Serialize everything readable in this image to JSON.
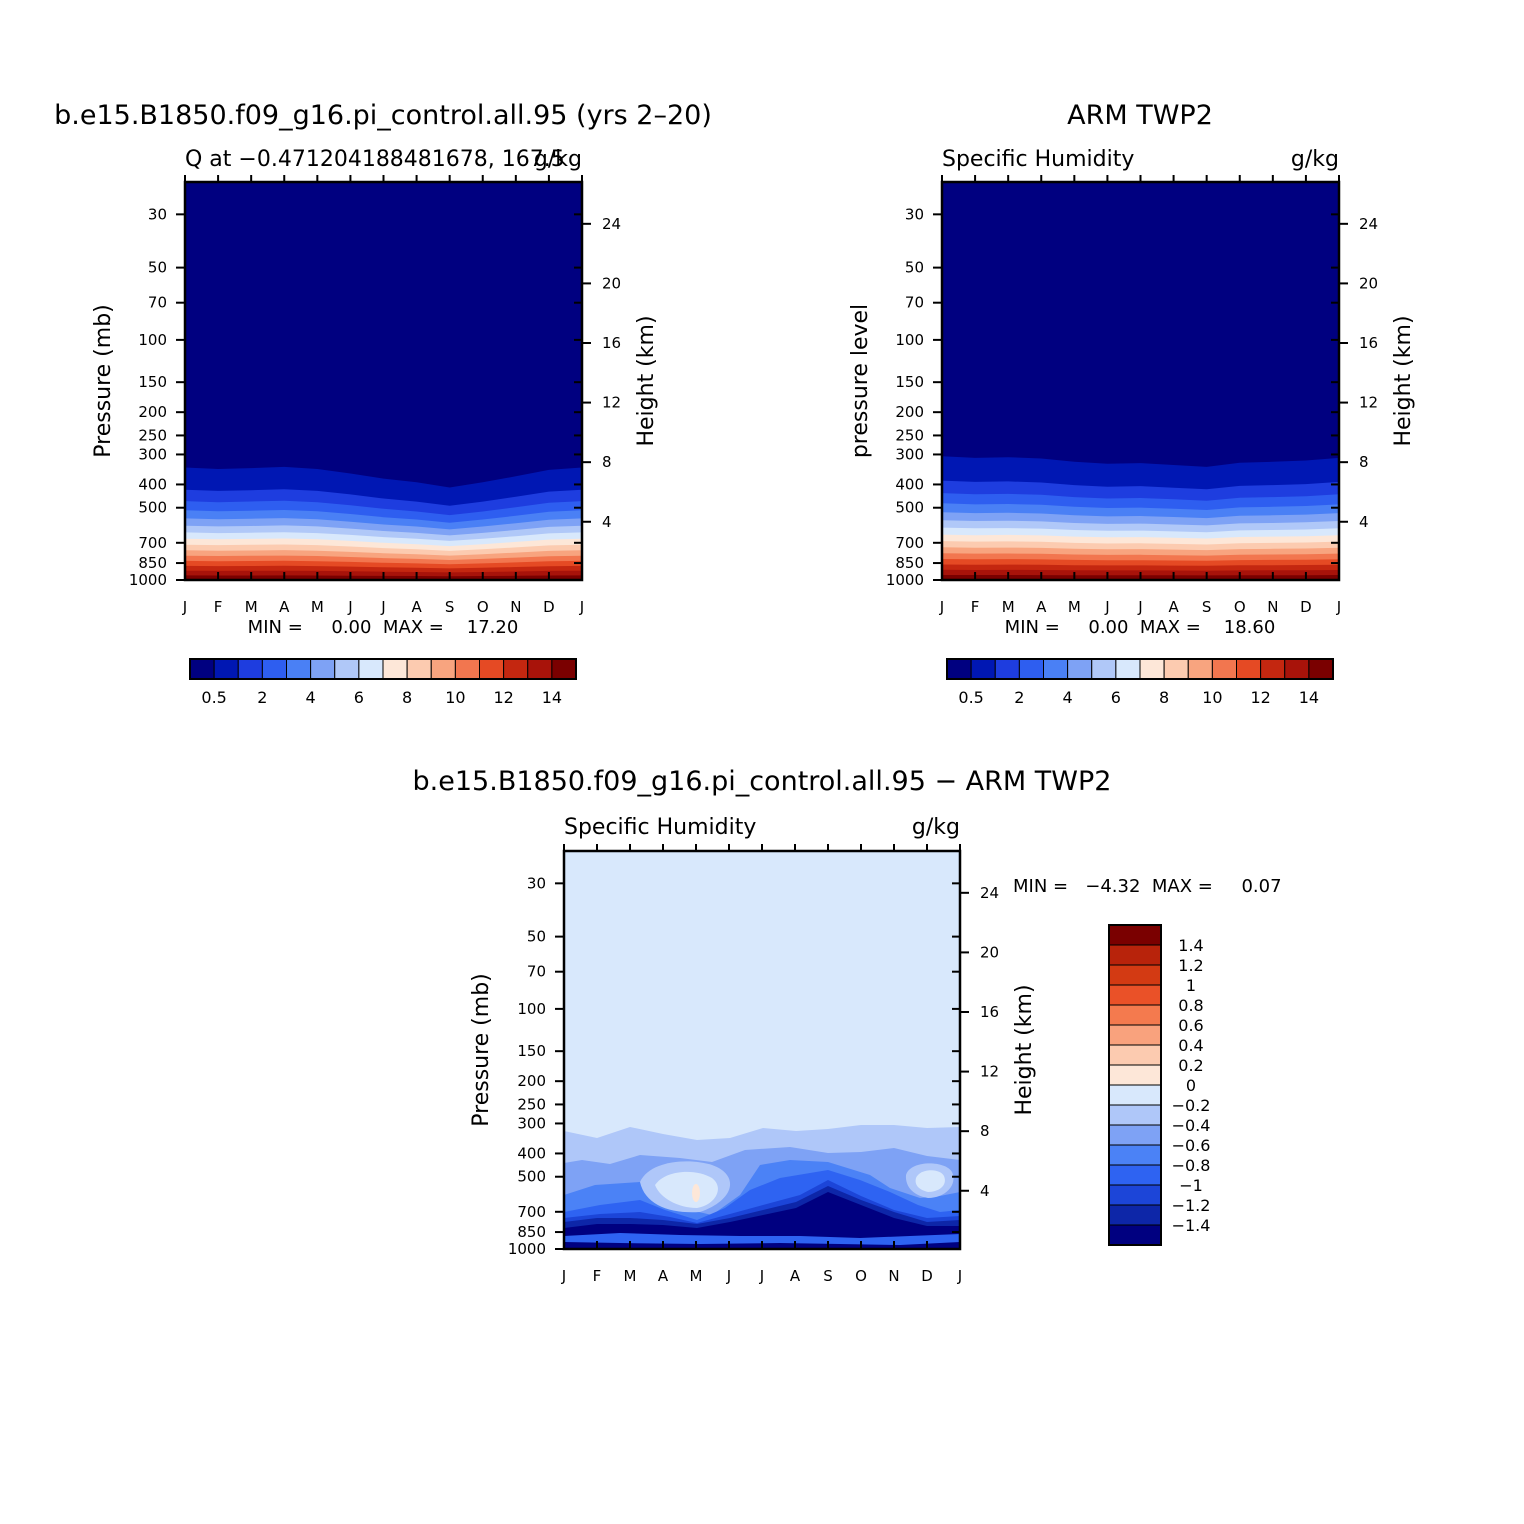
{
  "colors": {
    "seq": [
      "#000080",
      "#0017b3",
      "#1e3ddf",
      "#2e5ef0",
      "#4a80f5",
      "#7ea2f5",
      "#b0c8f8",
      "#d8e8fc",
      "#fde7d8",
      "#fccbb0",
      "#f8a47f",
      "#f2764f",
      "#e54a24",
      "#c42710",
      "#a8130a",
      "#7a0000"
    ],
    "diff": [
      "#000080",
      "#0d26a8",
      "#1c45d8",
      "#2e63f2",
      "#4b82f6",
      "#7ea2f5",
      "#afc7f9",
      "#d8e8fc",
      "#fde7d8",
      "#fccbb0",
      "#f9a27d",
      "#f47a4e",
      "#ea5128",
      "#d33a13",
      "#b8230b",
      "#7a0000"
    ]
  },
  "chart_data": [
    {
      "type": "contour",
      "title": "b.e15.B1850.f09_g16.pi_control.all.95 (yrs 2–20)",
      "subtitle_left": "Q at −0.471204188481678, 167.5",
      "subtitle_right": "g/kg",
      "ylabel": "Pressure (mb)",
      "ylabel_right": "Height (km)",
      "months": [
        "J",
        "F",
        "M",
        "A",
        "M",
        "J",
        "J",
        "A",
        "S",
        "O",
        "N",
        "D",
        "J"
      ],
      "pressure_ticks": [
        "30",
        "50",
        "70",
        "100",
        "150",
        "200",
        "250",
        "300",
        "400",
        "500",
        "700",
        "850",
        "1000"
      ],
      "height_ticks": [
        "24",
        "20",
        "16",
        "12",
        "8",
        "4"
      ],
      "y_scale": "log",
      "min_max_text": "MIN =     0.00  MAX =    17.20",
      "stats": {
        "min": 0.0,
        "max": 17.2
      },
      "colorbar_labels": [
        "0.5",
        "2",
        "4",
        "6",
        "8",
        "10",
        "12",
        "14"
      ],
      "moisture_top_mb": [
        340,
        345,
        342,
        338,
        345,
        360,
        378,
        392,
        412,
        392,
        370,
        348,
        340
      ],
      "contour_levels": [
        0,
        0.5,
        1,
        2,
        3,
        4,
        5,
        6,
        7,
        8,
        9,
        10,
        11,
        12,
        13,
        14
      ]
    },
    {
      "type": "contour",
      "title": "ARM TWP2",
      "subtitle_left": "Specific Humidity",
      "subtitle_right": "g/kg",
      "ylabel": "pressure level",
      "ylabel_right": "Height (km)",
      "months": [
        "J",
        "F",
        "M",
        "A",
        "M",
        "J",
        "J",
        "A",
        "S",
        "O",
        "N",
        "D",
        "J"
      ],
      "pressure_ticks": [
        "30",
        "50",
        "70",
        "100",
        "150",
        "200",
        "250",
        "300",
        "400",
        "500",
        "700",
        "850",
        "1000"
      ],
      "height_ticks": [
        "24",
        "20",
        "16",
        "12",
        "8",
        "4"
      ],
      "y_scale": "log",
      "min_max_text": "MIN =     0.00  MAX =    18.60",
      "stats": {
        "min": 0.0,
        "max": 18.6
      },
      "colorbar_labels": [
        "0.5",
        "2",
        "4",
        "6",
        "8",
        "10",
        "12",
        "14"
      ],
      "moisture_top_mb": [
        305,
        310,
        308,
        312,
        322,
        328,
        326,
        332,
        338,
        325,
        322,
        318,
        310
      ],
      "contour_levels": [
        0,
        0.5,
        1,
        2,
        3,
        4,
        5,
        6,
        7,
        8,
        9,
        10,
        11,
        12,
        13,
        14
      ]
    },
    {
      "type": "contour",
      "title": "b.e15.B1850.f09_g16.pi_control.all.95 − ARM TWP2",
      "subtitle_left": "Specific Humidity",
      "subtitle_right": "g/kg",
      "ylabel": "Pressure (mb)",
      "ylabel_right": "Height (km)",
      "months": [
        "J",
        "F",
        "M",
        "A",
        "M",
        "J",
        "J",
        "A",
        "S",
        "O",
        "N",
        "D",
        "J"
      ],
      "pressure_ticks": [
        "30",
        "50",
        "70",
        "100",
        "150",
        "200",
        "250",
        "300",
        "400",
        "500",
        "700",
        "850",
        "1000"
      ],
      "height_ticks": [
        "24",
        "20",
        "16",
        "12",
        "8",
        "4"
      ],
      "y_scale": "log",
      "min_max_text": "MIN =   −4.32  MAX =     0.07",
      "stats": {
        "min": -4.32,
        "max": 0.07
      },
      "colorbar_labels": [
        "1.4",
        "1.2",
        "1",
        "0.8",
        "0.6",
        "0.4",
        "0.2",
        "0",
        "−0.2",
        "−0.4",
        "−0.6",
        "−0.8",
        "−1",
        "−1.2",
        "−1.4"
      ]
    }
  ]
}
